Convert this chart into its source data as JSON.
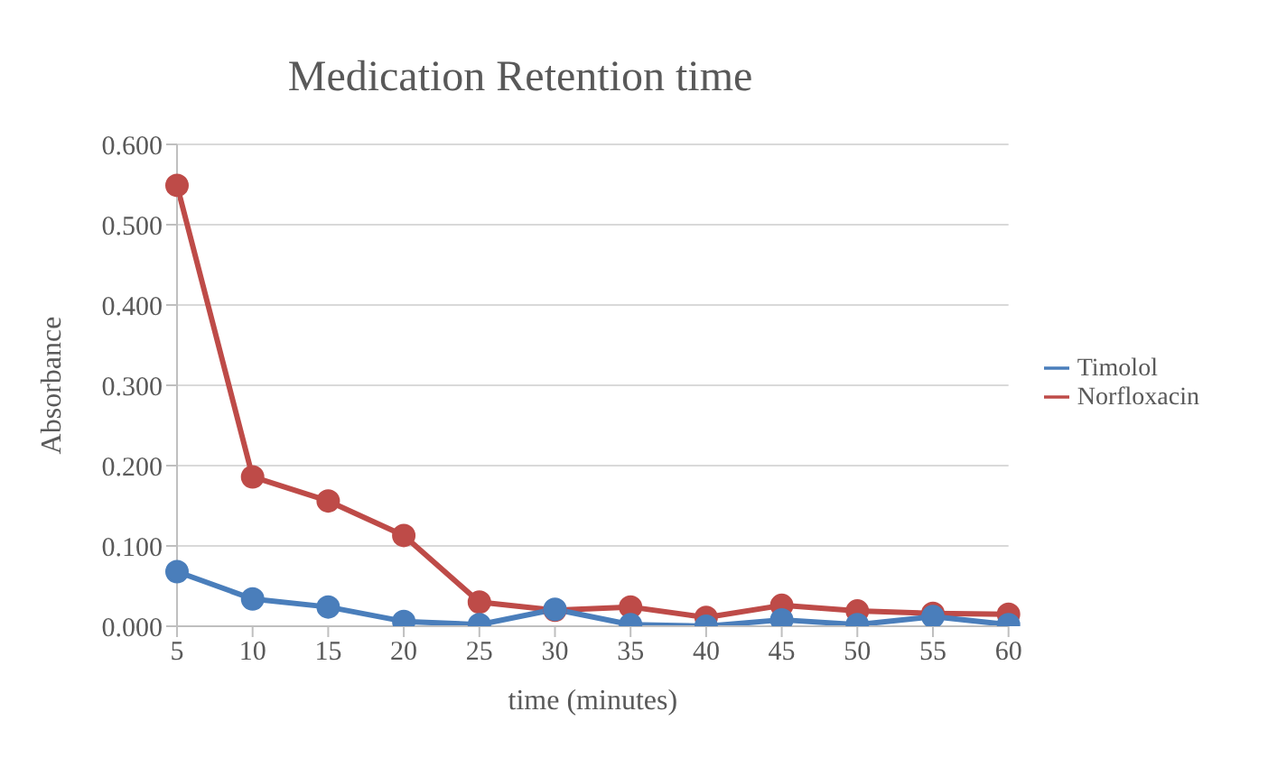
{
  "chart_data": {
    "type": "line",
    "title": "Medication Retention time",
    "xlabel": "time (minutes)",
    "ylabel": "Absorbance",
    "categories": [
      "5",
      "10",
      "15",
      "20",
      "25",
      "30",
      "35",
      "40",
      "45",
      "50",
      "55",
      "60"
    ],
    "series": [
      {
        "name": "Timolol",
        "color": "#4a7ebb",
        "values": [
          0.068,
          0.034,
          0.024,
          0.006,
          0.002,
          0.021,
          0.002,
          0.0,
          0.008,
          0.002,
          0.012,
          0.002
        ]
      },
      {
        "name": "Norfloxacin",
        "color": "#be4b48",
        "values": [
          0.549,
          0.186,
          0.156,
          0.113,
          0.03,
          0.02,
          0.024,
          0.011,
          0.026,
          0.019,
          0.016,
          0.015
        ]
      }
    ],
    "ylim": [
      0,
      0.6
    ],
    "yticks": [
      {
        "value": 0,
        "label": "0.000"
      },
      {
        "value": 0.1,
        "label": "0.100"
      },
      {
        "value": 0.2,
        "label": "0.200"
      },
      {
        "value": 0.3,
        "label": "0.300"
      },
      {
        "value": 0.4,
        "label": "0.400"
      },
      {
        "value": 0.5,
        "label": "0.500"
      },
      {
        "value": 0.6,
        "label": "0.600"
      }
    ],
    "grid": "y",
    "legend": "right",
    "marker": "circle",
    "line_style": "solid"
  }
}
